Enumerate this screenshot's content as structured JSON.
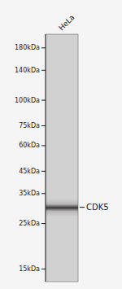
{
  "chart_data": {
    "type": "blot",
    "categories": [
      "HeLa"
    ],
    "series": [
      {
        "name": "CDK5",
        "values": [
          30
        ]
      }
    ],
    "log": "y",
    "ylim": [
      13,
      210
    ],
    "yticks": [
      {
        "value": 180,
        "label": "180kDa"
      },
      {
        "value": 140,
        "label": "140kDa"
      },
      {
        "value": 100,
        "label": "100kDa"
      },
      {
        "value": 75,
        "label": "75kDa"
      },
      {
        "value": 60,
        "label": "60kDa"
      },
      {
        "value": 45,
        "label": "45kDa"
      },
      {
        "value": 35,
        "label": "35kDa"
      },
      {
        "value": 25,
        "label": "25kDa"
      },
      {
        "value": 15,
        "label": "15kDa"
      }
    ],
    "grid": false
  }
}
